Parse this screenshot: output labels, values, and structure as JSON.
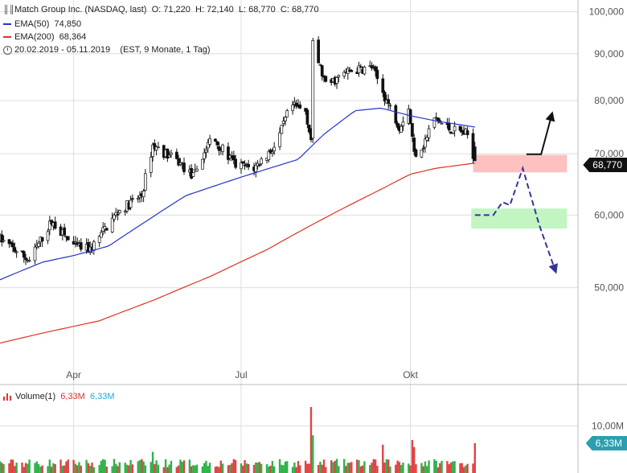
{
  "header": {
    "symbol_line": "Match Group Inc. (NASDAQ, last)",
    "o_label": "O:",
    "o_value": "71,220",
    "h_label": "H:",
    "h_value": "72,140",
    "l_label": "L:",
    "l_value": "68,770",
    "c_label": "C:",
    "c_value": "68,770",
    "ema50_label": "EMA(50)",
    "ema50_value": "74,850",
    "ema200_label": "EMA(200)",
    "ema200_value": "68,364",
    "period_line": "20.02.2019 - 05.11.2019    (EST, 9 Monate, 1 Tag)"
  },
  "volume_header": {
    "label": "Volume(1)",
    "value_red": "6,33M",
    "value_blue": "6,33M"
  },
  "badges": {
    "price": "68,770",
    "volume": "6,33M"
  },
  "colors": {
    "ema50": "#2233cc",
    "ema200": "#e03020",
    "up": "#ffffff",
    "down": "#111111",
    "resistance_zone": "#ffc0c0",
    "support_zone": "#c2f5c2",
    "projection": "#333399",
    "volume_up": "#2fb34a",
    "volume_down": "#e04444",
    "grid": "#dddddd"
  },
  "chart_data": {
    "type": "candlestick",
    "title": "Match Group Inc. (NASDAQ, last)",
    "y_scale": "log",
    "ylim": [
      40000,
      103000
    ],
    "y_ticks": [
      50000,
      60000,
      70000,
      80000,
      90000,
      100000
    ],
    "y_tick_labels": [
      "50,000",
      "60,000",
      "70,000",
      "80,000",
      "90,000",
      "100,000"
    ],
    "x_range": [
      "2019-02-20",
      "2019-12-31"
    ],
    "x_ticks": [
      {
        "date": "2019-04-01",
        "label": "Apr"
      },
      {
        "date": "2019-07-01",
        "label": "Jul"
      },
      {
        "date": "2019-10-01",
        "label": "Okt"
      }
    ],
    "grid": true,
    "last": {
      "open": 71220,
      "high": 72140,
      "low": 68770,
      "close": 68770
    },
    "price_keypoints": [
      [
        "2019-02-20",
        56500
      ],
      [
        "2019-03-08",
        53500
      ],
      [
        "2019-03-20",
        59000
      ],
      [
        "2019-04-01",
        55500
      ],
      [
        "2019-04-10",
        55000
      ],
      [
        "2019-04-25",
        60500
      ],
      [
        "2019-05-08",
        63000
      ],
      [
        "2019-05-14",
        71500
      ],
      [
        "2019-05-28",
        68500
      ],
      [
        "2019-06-05",
        66000
      ],
      [
        "2019-06-15",
        73000
      ],
      [
        "2019-06-28",
        68000
      ],
      [
        "2019-07-08",
        67500
      ],
      [
        "2019-07-20",
        71500
      ],
      [
        "2019-07-28",
        79000
      ],
      [
        "2019-08-05",
        78000
      ],
      [
        "2019-08-08",
        72500
      ],
      [
        "2019-08-09",
        92000
      ],
      [
        "2019-08-16",
        83000
      ],
      [
        "2019-08-28",
        86000
      ],
      [
        "2019-09-10",
        87000
      ],
      [
        "2019-09-18",
        80000
      ],
      [
        "2019-09-25",
        75000
      ],
      [
        "2019-09-30",
        78500
      ],
      [
        "2019-10-03",
        70000
      ],
      [
        "2019-10-08",
        71500
      ],
      [
        "2019-10-14",
        76500
      ],
      [
        "2019-10-22",
        74500
      ],
      [
        "2019-10-28",
        74000
      ],
      [
        "2019-11-01",
        73500
      ],
      [
        "2019-11-05",
        68770
      ]
    ],
    "ema50_keypoints": [
      [
        "2019-02-20",
        51000
      ],
      [
        "2019-03-15",
        53300
      ],
      [
        "2019-04-01",
        54200
      ],
      [
        "2019-04-20",
        55500
      ],
      [
        "2019-05-10",
        59000
      ],
      [
        "2019-06-01",
        63000
      ],
      [
        "2019-07-01",
        66000
      ],
      [
        "2019-08-01",
        69000
      ],
      [
        "2019-08-15",
        73500
      ],
      [
        "2019-09-01",
        78000
      ],
      [
        "2019-09-15",
        78500
      ],
      [
        "2019-10-01",
        77000
      ],
      [
        "2019-10-15",
        76000
      ],
      [
        "2019-11-05",
        74850
      ]
    ],
    "ema200_keypoints": [
      [
        "2019-02-20",
        43500
      ],
      [
        "2019-03-15",
        44600
      ],
      [
        "2019-04-15",
        46000
      ],
      [
        "2019-05-15",
        48500
      ],
      [
        "2019-06-15",
        51500
      ],
      [
        "2019-07-15",
        55000
      ],
      [
        "2019-08-15",
        59500
      ],
      [
        "2019-09-15",
        64000
      ],
      [
        "2019-10-01",
        66500
      ],
      [
        "2019-10-15",
        67500
      ],
      [
        "2019-11-05",
        68364
      ]
    ],
    "zones": [
      {
        "name": "resistance",
        "from": 66800,
        "to": 69800,
        "x_from": "2019-11-04",
        "x_to": "2019-12-25"
      },
      {
        "name": "support",
        "from": 58000,
        "to": 61000,
        "x_from": "2019-11-03",
        "x_to": "2019-12-25"
      }
    ],
    "projection_up": [
      [
        "2019-12-03",
        69900
      ],
      [
        "2019-12-11",
        69900
      ],
      [
        "2019-12-17",
        77500
      ]
    ],
    "projection_down": [
      [
        "2019-11-05",
        60000
      ],
      [
        "2019-11-15",
        60000
      ],
      [
        "2019-11-20",
        62000
      ],
      [
        "2019-11-24",
        61500
      ],
      [
        "2019-12-01",
        67500
      ],
      [
        "2019-12-10",
        58500
      ],
      [
        "2019-12-19",
        52000
      ]
    ],
    "volume": {
      "label": "Volume(1)",
      "last": "6,33M",
      "y_ticks": [
        10000000
      ],
      "y_tick_labels": [
        "10,00M"
      ],
      "ylim": [
        0,
        14000000
      ],
      "spikes": [
        [
          "2019-05-14",
          4500000
        ],
        [
          "2019-08-08",
          14000000
        ],
        [
          "2019-08-09",
          8000000
        ],
        [
          "2019-10-02",
          7000000
        ],
        [
          "2019-10-03",
          5500000
        ],
        [
          "2019-09-16",
          6000000
        ],
        [
          "2019-11-05",
          6330000
        ]
      ]
    }
  }
}
